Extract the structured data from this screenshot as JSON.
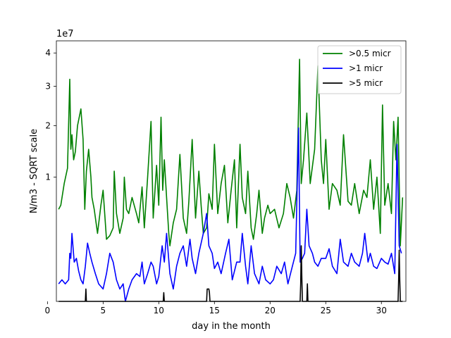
{
  "chart_data": {
    "type": "line",
    "title": "",
    "xlabel": "day in the month",
    "ylabel": "N/m3 - SQRT scale",
    "y_scale": "sqrt",
    "y_offset_label": "1e7",
    "xlim": [
      0.8,
      32.2
    ],
    "ylim": [
      0,
      4.4
    ],
    "x_ticks": [
      0,
      5,
      10,
      15,
      20,
      25,
      30
    ],
    "x_tick_labels": [
      "0",
      "5",
      "10",
      "15",
      "20",
      "25",
      "30"
    ],
    "y_ticks": [
      1,
      2,
      3,
      4
    ],
    "y_tick_labels": [
      "1",
      "2",
      "3",
      "4"
    ],
    "legend": {
      "position": "upper-right",
      "entries": [
        ">0.5 micr",
        ">1 micr",
        ">5 micr"
      ]
    },
    "series": [
      {
        "name": ">0.5 micr",
        "color": "#008000",
        "x": [
          1.0,
          1.2,
          1.5,
          1.8,
          2.0,
          2.1,
          2.2,
          2.35,
          2.5,
          2.7,
          3.0,
          3.2,
          3.35,
          3.5,
          3.7,
          3.9,
          4.0,
          4.2,
          4.5,
          4.8,
          5.0,
          5.3,
          5.6,
          5.9,
          6.0,
          6.2,
          6.5,
          6.8,
          6.9,
          7.1,
          7.3,
          7.6,
          8.0,
          8.2,
          8.5,
          8.7,
          9.0,
          9.3,
          9.5,
          9.8,
          10.0,
          10.2,
          10.35,
          10.5,
          10.7,
          10.9,
          11.0,
          11.3,
          11.6,
          11.9,
          12.2,
          12.5,
          12.7,
          13.0,
          13.3,
          13.6,
          13.8,
          14.0,
          14.3,
          14.5,
          14.8,
          15.0,
          15.3,
          15.6,
          15.9,
          16.2,
          16.5,
          16.8,
          17.0,
          17.3,
          17.5,
          17.8,
          18.0,
          18.3,
          18.5,
          18.8,
          19.0,
          19.3,
          19.5,
          19.8,
          20.0,
          20.4,
          20.8,
          21.2,
          21.5,
          21.8,
          22.1,
          22.4,
          22.65,
          22.8,
          23.0,
          23.3,
          23.6,
          24.0,
          24.3,
          24.6,
          24.8,
          25.0,
          25.3,
          25.6,
          26.0,
          26.3,
          26.6,
          27.0,
          27.3,
          27.6,
          28.0,
          28.4,
          28.7,
          29.0,
          29.3,
          29.6,
          29.9,
          30.1,
          30.3,
          30.6,
          30.9,
          31.1,
          31.3,
          31.5,
          31.7,
          31.9
        ],
        "values": [
          0.55,
          0.6,
          0.9,
          1.15,
          3.2,
          1.5,
          1.8,
          1.3,
          1.45,
          2.0,
          2.4,
          1.7,
          0.55,
          1.1,
          1.5,
          1.0,
          0.7,
          0.55,
          0.3,
          0.6,
          0.8,
          0.25,
          0.28,
          0.35,
          1.1,
          0.5,
          0.3,
          0.45,
          1.0,
          0.55,
          0.5,
          0.7,
          0.5,
          0.4,
          0.85,
          0.35,
          1.0,
          2.1,
          0.45,
          1.2,
          0.6,
          2.2,
          0.8,
          1.3,
          0.7,
          0.3,
          0.2,
          0.4,
          0.55,
          1.4,
          0.45,
          0.3,
          0.65,
          1.7,
          0.45,
          1.1,
          0.6,
          0.3,
          0.35,
          0.75,
          0.55,
          1.6,
          0.5,
          0.9,
          1.2,
          0.4,
          0.8,
          1.3,
          0.35,
          1.6,
          0.7,
          0.5,
          1.1,
          0.35,
          0.25,
          0.5,
          0.8,
          0.3,
          0.45,
          0.6,
          0.5,
          0.55,
          0.35,
          0.5,
          0.9,
          0.7,
          0.45,
          0.8,
          3.8,
          0.9,
          1.3,
          2.3,
          0.9,
          1.5,
          3.6,
          1.3,
          0.9,
          1.7,
          0.55,
          0.9,
          0.8,
          0.6,
          1.8,
          0.65,
          0.6,
          0.9,
          0.5,
          0.8,
          0.7,
          1.3,
          0.55,
          1.0,
          0.3,
          2.5,
          0.6,
          0.9,
          0.5,
          2.1,
          1.3,
          2.2,
          0.2,
          0.7
        ]
      },
      {
        "name": ">1 micr",
        "color": "#0000ff",
        "x": [
          1.0,
          1.3,
          1.6,
          1.9,
          2.0,
          2.1,
          2.2,
          2.4,
          2.6,
          2.8,
          3.0,
          3.2,
          3.4,
          3.6,
          3.8,
          4.0,
          4.3,
          4.6,
          5.0,
          5.3,
          5.6,
          5.9,
          6.2,
          6.5,
          6.8,
          7.0,
          7.3,
          7.6,
          8.0,
          8.3,
          8.5,
          8.7,
          9.0,
          9.3,
          9.5,
          9.8,
          10.0,
          10.3,
          10.5,
          10.7,
          11.0,
          11.3,
          11.6,
          11.9,
          12.2,
          12.5,
          12.8,
          13.0,
          13.3,
          13.6,
          14.0,
          14.3,
          14.5,
          14.8,
          15.0,
          15.3,
          15.6,
          16.0,
          16.3,
          16.6,
          17.0,
          17.3,
          17.5,
          17.8,
          18.0,
          18.3,
          18.6,
          19.0,
          19.3,
          19.6,
          20.0,
          20.3,
          20.6,
          21.0,
          21.3,
          21.6,
          22.0,
          22.3,
          22.55,
          22.7,
          22.9,
          23.1,
          23.3,
          23.5,
          23.8,
          24.0,
          24.3,
          24.6,
          25.0,
          25.3,
          25.6,
          26.0,
          26.3,
          26.6,
          27.0,
          27.3,
          27.6,
          28.0,
          28.3,
          28.5,
          28.8,
          29.0,
          29.3,
          29.6,
          30.0,
          30.3,
          30.6,
          30.9,
          31.2,
          31.4,
          31.6,
          31.8
        ],
        "values": [
          0.02,
          0.03,
          0.02,
          0.03,
          0.15,
          0.12,
          0.3,
          0.1,
          0.12,
          0.06,
          0.03,
          0.02,
          0.08,
          0.22,
          0.15,
          0.1,
          0.05,
          0.02,
          0.01,
          0.05,
          0.15,
          0.1,
          0.03,
          0.01,
          0.02,
          0.0,
          0.01,
          0.03,
          0.05,
          0.04,
          0.1,
          0.02,
          0.05,
          0.1,
          0.08,
          0.02,
          0.04,
          0.2,
          0.1,
          0.3,
          0.05,
          0.01,
          0.08,
          0.15,
          0.2,
          0.08,
          0.25,
          0.12,
          0.05,
          0.15,
          0.3,
          0.5,
          0.2,
          0.15,
          0.07,
          0.1,
          0.05,
          0.15,
          0.25,
          0.03,
          0.1,
          0.1,
          0.3,
          0.08,
          0.02,
          0.2,
          0.05,
          0.02,
          0.08,
          0.03,
          0.02,
          0.03,
          0.08,
          0.05,
          0.1,
          0.02,
          0.08,
          0.15,
          1.95,
          0.1,
          0.12,
          0.15,
          0.55,
          0.2,
          0.15,
          0.1,
          0.08,
          0.12,
          0.12,
          0.18,
          0.08,
          0.05,
          0.25,
          0.1,
          0.08,
          0.15,
          0.1,
          0.08,
          0.15,
          0.3,
          0.1,
          0.15,
          0.08,
          0.07,
          0.12,
          0.1,
          0.09,
          0.15,
          0.05,
          1.6,
          0.2,
          0.15
        ]
      },
      {
        "name": ">5 micr",
        "color": "#000000",
        "x": [
          1.0,
          3.4,
          3.45,
          3.5,
          10.4,
          10.45,
          10.5,
          14.3,
          14.35,
          14.5,
          14.55,
          14.6,
          22.7,
          22.75,
          22.8,
          22.85,
          22.9,
          23.3,
          23.35,
          23.4,
          31.5,
          31.55,
          31.6,
          31.65,
          31.7,
          31.9
        ],
        "values": [
          0,
          0,
          0.01,
          0,
          0,
          0.005,
          0,
          0,
          0.01,
          0.01,
          0.005,
          0,
          0,
          0.02,
          0.2,
          0.04,
          0,
          0,
          0.02,
          0,
          0,
          0.03,
          0.17,
          0.03,
          0,
          0
        ]
      }
    ]
  }
}
